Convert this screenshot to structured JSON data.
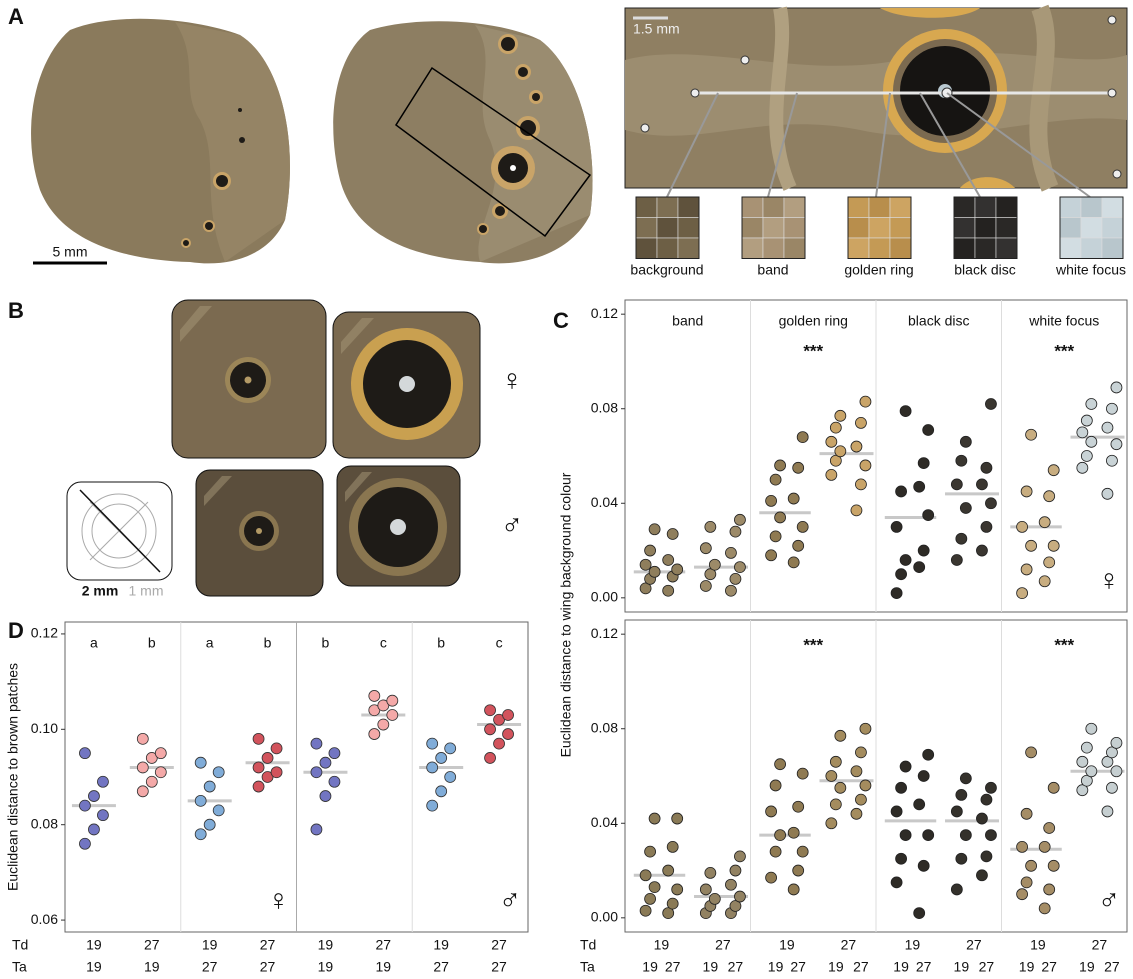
{
  "panel_labels": [
    "A",
    "B",
    "C",
    "D"
  ],
  "panel_a": {
    "scale_bar_wing": "5 mm",
    "scale_bar_zoom": "1.5 mm",
    "patches": [
      "background",
      "band",
      "golden ring",
      "black disc",
      "white focus"
    ]
  },
  "panel_b": {
    "scale_major": "2 mm",
    "scale_minor": "1 mm",
    "female": "♀",
    "male": "♂"
  },
  "chart_data": [
    {
      "type": "strip",
      "ylabel": "Euclidean distance to wing background colour",
      "sex": "♀",
      "ylim": [
        -0.006,
        0.126
      ],
      "yticks": [
        {
          "value": 0,
          "label": "0.00"
        },
        0.04,
        0.08,
        0.12
      ],
      "significance": [
        null,
        "***",
        null,
        "***"
      ],
      "series": [
        {
          "name": "band",
          "colors": [
            "#8f7e5c",
            "#9c8a68"
          ],
          "medians": [
            0.011,
            0.013
          ],
          "values": [
            [
              0.004,
              0.008,
              0.011,
              0.014,
              0.02,
              0.029
            ],
            [
              0.003,
              0.009,
              0.012,
              0.016,
              0.027
            ],
            [
              0.005,
              0.01,
              0.014,
              0.021,
              0.03
            ],
            [
              0.003,
              0.008,
              0.013,
              0.019,
              0.028,
              0.033
            ]
          ]
        },
        {
          "name": "golden ring",
          "colors": [
            "#8f7a52",
            "#c9a468"
          ],
          "medians": [
            0.036,
            0.061
          ],
          "values": [
            [
              0.018,
              0.026,
              0.034,
              0.041,
              0.05,
              0.056
            ],
            [
              0.015,
              0.022,
              0.03,
              0.042,
              0.055,
              0.068
            ],
            [
              0.052,
              0.058,
              0.062,
              0.066,
              0.072,
              0.077
            ],
            [
              0.037,
              0.048,
              0.056,
              0.064,
              0.074,
              0.083
            ]
          ]
        },
        {
          "name": "black disc",
          "colors": [
            "#2e2b26",
            "#3a3630"
          ],
          "medians": [
            0.034,
            0.044
          ],
          "values": [
            [
              0.002,
              0.01,
              0.016,
              0.03,
              0.045,
              0.079
            ],
            [
              0.013,
              0.02,
              0.035,
              0.047,
              0.057,
              0.071
            ],
            [
              0.016,
              0.025,
              0.038,
              0.048,
              0.058,
              0.066
            ],
            [
              0.02,
              0.03,
              0.04,
              0.048,
              0.055,
              0.082
            ]
          ]
        },
        {
          "name": "white focus",
          "colors": [
            "#c8ad80",
            "#c9d3d6"
          ],
          "medians": [
            0.03,
            0.068
          ],
          "values": [
            [
              0.002,
              0.012,
              0.022,
              0.03,
              0.045,
              0.069
            ],
            [
              0.007,
              0.015,
              0.022,
              0.032,
              0.043,
              0.054
            ],
            [
              0.055,
              0.06,
              0.066,
              0.07,
              0.075,
              0.082
            ],
            [
              0.044,
              0.058,
              0.065,
              0.072,
              0.08,
              0.089
            ]
          ]
        }
      ]
    },
    {
      "type": "strip",
      "sex": "♂",
      "ylim": [
        -0.006,
        0.126
      ],
      "yticks": [
        {
          "value": 0,
          "label": "0.00"
        },
        0.04,
        0.08,
        0.12
      ],
      "significance": [
        null,
        "***",
        null,
        "***"
      ],
      "td_label": "Td",
      "ta_label": "Ta",
      "td": [
        19,
        27
      ],
      "ta": [
        19,
        27
      ],
      "series": [
        {
          "name": "band",
          "colors": [
            "#8a7a56",
            "#928262"
          ],
          "medians": [
            0.018,
            0.009
          ],
          "values": [
            [
              0.003,
              0.008,
              0.013,
              0.018,
              0.028,
              0.042
            ],
            [
              0.002,
              0.006,
              0.012,
              0.02,
              0.03,
              0.042
            ],
            [
              0.002,
              0.005,
              0.008,
              0.012,
              0.019
            ],
            [
              0.002,
              0.005,
              0.009,
              0.014,
              0.02,
              0.026
            ]
          ]
        },
        {
          "name": "golden ring",
          "colors": [
            "#8f7a52",
            "#a48c5e"
          ],
          "medians": [
            0.035,
            0.058
          ],
          "values": [
            [
              0.017,
              0.028,
              0.035,
              0.045,
              0.056,
              0.065
            ],
            [
              0.012,
              0.02,
              0.028,
              0.036,
              0.047,
              0.061
            ],
            [
              0.04,
              0.048,
              0.055,
              0.06,
              0.066,
              0.077
            ],
            [
              0.044,
              0.05,
              0.056,
              0.062,
              0.07,
              0.08
            ]
          ]
        },
        {
          "name": "black disc",
          "colors": [
            "#2e2b26",
            "#34312b"
          ],
          "medians": [
            0.041,
            0.041
          ],
          "values": [
            [
              0.015,
              0.025,
              0.035,
              0.045,
              0.055,
              0.064
            ],
            [
              0.002,
              0.022,
              0.035,
              0.048,
              0.06,
              0.069
            ],
            [
              0.012,
              0.025,
              0.035,
              0.045,
              0.052,
              0.059
            ],
            [
              0.018,
              0.026,
              0.035,
              0.042,
              0.05,
              0.055
            ]
          ]
        },
        {
          "name": "white focus",
          "colors": [
            "#a58d66",
            "#c6cfd1"
          ],
          "medians": [
            0.029,
            0.062
          ],
          "values": [
            [
              0.01,
              0.015,
              0.022,
              0.03,
              0.044,
              0.07
            ],
            [
              0.004,
              0.012,
              0.022,
              0.03,
              0.038,
              0.055
            ],
            [
              0.054,
              0.058,
              0.062,
              0.066,
              0.072,
              0.08
            ],
            [
              0.045,
              0.055,
              0.062,
              0.066,
              0.07,
              0.074
            ]
          ]
        }
      ]
    },
    {
      "type": "strip",
      "ylabel": "Euclidean distance to brown patches",
      "sexes": [
        "♀",
        "♂"
      ],
      "td_label": "Td",
      "ta_label": "Ta",
      "ylim": [
        0.0575,
        0.1225
      ],
      "yticks": [
        0.06,
        0.08,
        {
          "value": 0.1,
          "label": "0.10"
        },
        0.12
      ],
      "groups": [
        {
          "td": 19,
          "ta": 19,
          "letter": "a",
          "color": "#7275c2",
          "median": 0.084,
          "values": [
            0.076,
            0.079,
            0.082,
            0.084,
            0.086,
            0.089,
            0.095
          ]
        },
        {
          "td": 27,
          "ta": 19,
          "letter": "b",
          "color": "#f4a9a8",
          "median": 0.092,
          "values": [
            0.087,
            0.089,
            0.091,
            0.092,
            0.094,
            0.095,
            0.098
          ]
        },
        {
          "td": 19,
          "ta": 27,
          "letter": "a",
          "color": "#80acd8",
          "median": 0.085,
          "values": [
            0.078,
            0.08,
            0.083,
            0.085,
            0.088,
            0.091,
            0.093
          ]
        },
        {
          "td": 27,
          "ta": 27,
          "letter": "b",
          "color": "#d2535c",
          "median": 0.093,
          "values": [
            0.088,
            0.09,
            0.091,
            0.092,
            0.094,
            0.096,
            0.098
          ]
        },
        {
          "td": 19,
          "ta": 19,
          "letter": "b",
          "color": "#7275c2",
          "median": 0.091,
          "values": [
            0.079,
            0.086,
            0.089,
            0.091,
            0.093,
            0.095,
            0.097
          ]
        },
        {
          "td": 27,
          "ta": 19,
          "letter": "c",
          "color": "#f4a9a8",
          "median": 0.103,
          "values": [
            0.099,
            0.101,
            0.103,
            0.104,
            0.105,
            0.106,
            0.107
          ]
        },
        {
          "td": 19,
          "ta": 27,
          "letter": "b",
          "color": "#80acd8",
          "median": 0.092,
          "values": [
            0.084,
            0.087,
            0.09,
            0.092,
            0.094,
            0.096,
            0.097
          ]
        },
        {
          "td": 27,
          "ta": 27,
          "letter": "c",
          "color": "#d2535c",
          "median": 0.101,
          "values": [
            0.094,
            0.097,
            0.099,
            0.1,
            0.102,
            0.103,
            0.104
          ]
        }
      ]
    }
  ]
}
